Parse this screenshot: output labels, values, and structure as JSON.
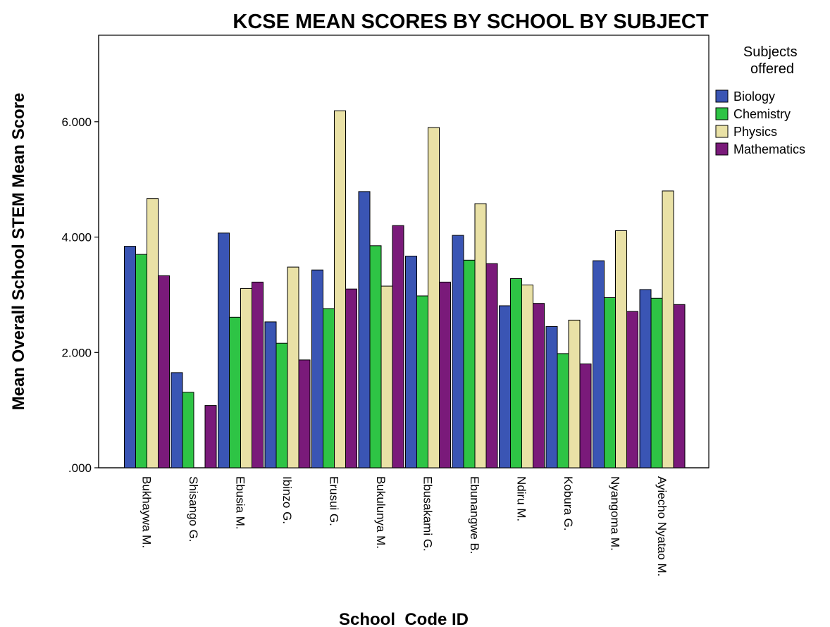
{
  "chart_data": {
    "type": "bar",
    "title": "KCSE MEAN SCORES BY SCHOOL BY SUBJECT",
    "xlabel": "School  Code ID",
    "ylabel": "Mean Overall School STEM  Mean Score",
    "ylim": [
      0,
      7.5
    ],
    "yticks": [
      0,
      2,
      4,
      6
    ],
    "ytick_labels": [
      ".000",
      "2.000",
      "4.000",
      "6.000"
    ],
    "grid": false,
    "legend_title": "Subjects offered",
    "legend_position": "right",
    "categories": [
      "Bukhaywa M.",
      "Shisango G.",
      "Ebusia M.",
      "Ibinzo G.",
      "Erusui G.",
      "Bukulunya M.",
      "Ebusakami G.",
      "Ebunangwe B.",
      "Ndiru M.",
      "Kobura G.",
      "Nyangoma M.",
      "Ayiecho Nyatao M."
    ],
    "series": [
      {
        "name": "Biology",
        "color": "#3a55b4",
        "values": [
          3.84,
          1.65,
          4.07,
          2.53,
          3.43,
          4.79,
          3.67,
          4.03,
          2.81,
          2.45,
          3.59,
          3.09
        ]
      },
      {
        "name": "Chemistry",
        "color": "#2ec445",
        "values": [
          3.7,
          1.31,
          2.61,
          2.16,
          2.76,
          3.85,
          2.98,
          3.6,
          3.28,
          1.98,
          2.95,
          2.94
        ]
      },
      {
        "name": "Physics",
        "color": "#e9e1a6",
        "values": [
          4.67,
          0.0,
          3.11,
          3.48,
          6.19,
          3.15,
          5.9,
          4.58,
          3.17,
          2.56,
          4.11,
          4.8
        ]
      },
      {
        "name": "Mathematics",
        "color": "#7a1a7a",
        "values": [
          3.33,
          1.08,
          3.22,
          1.87,
          3.1,
          4.2,
          3.22,
          3.54,
          2.85,
          1.8,
          2.71,
          2.83
        ]
      }
    ]
  }
}
